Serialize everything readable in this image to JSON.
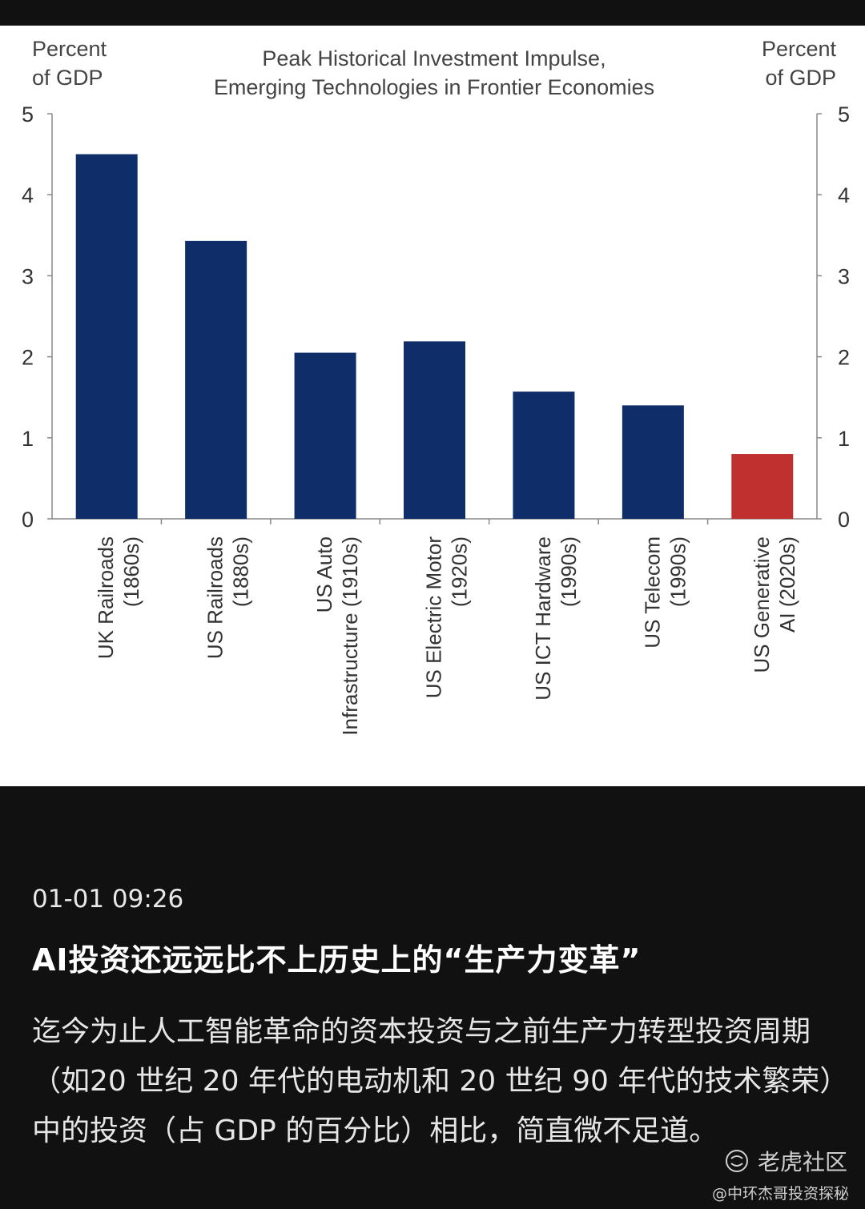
{
  "chart_data": {
    "type": "bar",
    "title_lines": [
      "Peak Historical Investment Impulse,",
      "Emerging Technologies  in Frontier Economies"
    ],
    "ylabel_left": [
      "Percent",
      "of GDP"
    ],
    "ylabel_right": [
      "Percent",
      "of GDP"
    ],
    "ylim": [
      0,
      5
    ],
    "yticks": [
      "0",
      "1",
      "2",
      "3",
      "4",
      "5"
    ],
    "categories": [
      [
        "UK Railroads",
        "(1860s)"
      ],
      [
        "US Railroads",
        "(1880s)"
      ],
      [
        "US Auto",
        "Infrastructure (1910s)"
      ],
      [
        "US Electric Motor",
        "(1920s)"
      ],
      [
        "US ICT Hardware",
        "(1990s)"
      ],
      [
        "US Telecom",
        "(1990s)"
      ],
      [
        "US Generative",
        "AI (2020s)"
      ]
    ],
    "values": [
      4.5,
      3.43,
      2.05,
      2.19,
      1.57,
      1.4,
      0.8
    ],
    "colors": [
      "#0f2d68",
      "#0f2d68",
      "#0f2d68",
      "#0f2d68",
      "#0f2d68",
      "#0f2d68",
      "#c0302e"
    ]
  },
  "post": {
    "timestamp": "01-01 09:26",
    "title": "AI投资还远远比不上历史上的“生产力变革”",
    "body": "迄今为止人工智能革命的资本投资与之前生产力转型投资周期（如20 世纪 20 年代的电动机和 20 世纪 90 年代的技术繁荣）中的投资（占 GDP 的百分比）相比，简直微不足道。"
  },
  "watermark": {
    "community": "老虎社区",
    "author": "@中环杰哥投资探秘"
  }
}
